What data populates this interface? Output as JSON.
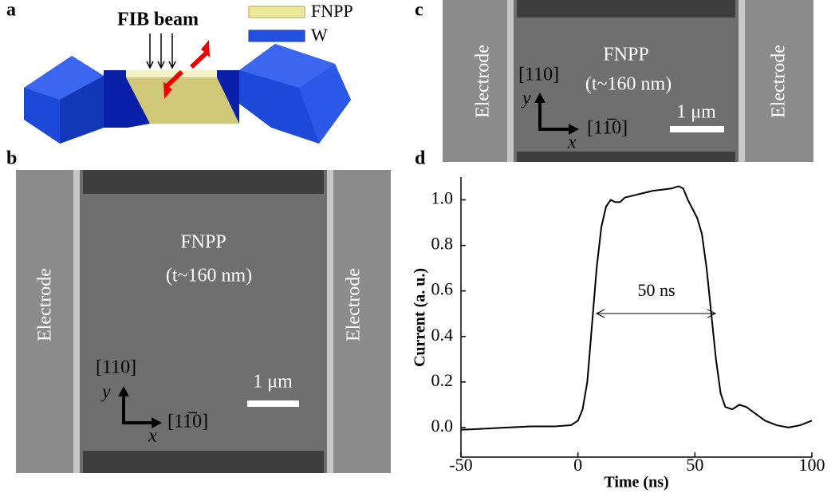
{
  "panel_labels": [
    "a",
    "b",
    "c",
    "d"
  ],
  "schematic": {
    "beam": "FIB beam",
    "legend": [
      {
        "name": "FNPP",
        "color": "#ece89a"
      },
      {
        "name": "W",
        "color": "#2450e0"
      }
    ]
  },
  "sem_b": {
    "material": "FNPP",
    "thickness": "(t~160 nm)",
    "electrodes": [
      "Electrode",
      "Electrode"
    ],
    "dir_y": "[110]",
    "axis_y": "y",
    "dir_x": "[11̅0]",
    "axis_x": "x",
    "scale_bar": "1 μm"
  },
  "sem_c": {
    "material": "FNPP",
    "thickness": "(t~160 nm)",
    "electrodes": [
      "Electrode",
      "Electrode"
    ],
    "dir_y": "[110]",
    "axis_y": "y",
    "dir_x": "[11̅0]",
    "axis_x": "x",
    "scale_bar": "1 μm"
  },
  "chart_data": {
    "type": "line",
    "x_label": "Time (ns)",
    "y_label": "Current (a. u.)",
    "annotation": "50 ns",
    "xlim": [
      -50,
      100
    ],
    "xticks": [
      -50,
      0,
      50,
      100
    ],
    "ylim": [
      -0.13,
      1.1
    ],
    "yticks": [
      {
        "value": 0,
        "label": "0.0"
      },
      {
        "value": 0.2,
        "label": "0.2"
      },
      {
        "value": 0.4,
        "label": "0.4"
      },
      {
        "value": 0.6,
        "label": "0.6"
      },
      {
        "value": 0.8,
        "label": "0.8"
      },
      {
        "value": 1.0,
        "label": "1.0"
      }
    ],
    "series": [
      {
        "color": "#000000",
        "x": [
          -50,
          -40,
          -30,
          -20,
          -10,
          -3,
          0,
          2,
          4,
          6,
          8,
          10,
          12,
          14,
          16,
          18,
          20,
          24,
          28,
          32,
          36,
          40,
          43,
          45,
          47,
          49,
          51,
          53,
          55,
          57,
          59,
          61,
          63,
          66,
          69,
          72,
          76,
          80,
          85,
          90,
          95,
          100
        ],
        "values": [
          -0.01,
          -0.005,
          0.0,
          0.005,
          0.005,
          0.01,
          0.03,
          0.08,
          0.2,
          0.45,
          0.7,
          0.88,
          0.97,
          1.0,
          0.99,
          0.99,
          1.01,
          1.02,
          1.03,
          1.04,
          1.045,
          1.05,
          1.06,
          1.05,
          1.0,
          0.96,
          0.92,
          0.85,
          0.7,
          0.5,
          0.3,
          0.15,
          0.09,
          0.08,
          0.1,
          0.09,
          0.06,
          0.03,
          0.01,
          0.0,
          0.01,
          0.03
        ]
      }
    ]
  }
}
